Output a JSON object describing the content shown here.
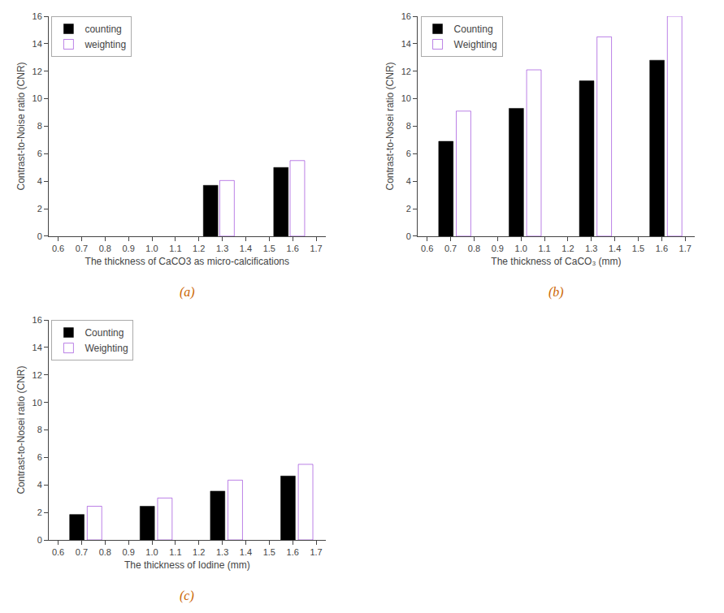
{
  "chart_data": [
    {
      "type": "bar",
      "xlabel": "The thickness of CaCO3 as micro-calcifications",
      "ylabel": "Contrast-to-Noise ratio (CNR)",
      "series": [
        {
          "name": "counting",
          "color": "#000000",
          "x": [
            1.25,
            1.55
          ],
          "values": [
            3.7,
            5.0
          ]
        },
        {
          "name": "weighting",
          "color": "#7700cc",
          "x": [
            1.32,
            1.62
          ],
          "values": [
            4.05,
            5.5
          ]
        }
      ],
      "xlim": [
        0.56,
        1.74
      ],
      "xticks": [
        0.6,
        0.7,
        0.8,
        0.9,
        {
          "value": 1.0,
          "label": "1.0"
        },
        1.1,
        1.2,
        1.3,
        1.4,
        1.5,
        1.6,
        1.7
      ],
      "ylim": [
        0,
        16
      ],
      "yticks": [
        0,
        2,
        4,
        6,
        8,
        10,
        12,
        14,
        16
      ],
      "grid": false,
      "legend": "upper left",
      "annotations": [
        "(a)"
      ]
    },
    {
      "type": "bar",
      "xlabel": "The thickness of CaCO₃ (mm)",
      "ylabel": "Contrast-to-Nosei ratio (CNR)",
      "series": [
        {
          "name": "Counting",
          "color": "#000000",
          "x": [
            0.68,
            0.98,
            1.28,
            1.58
          ],
          "values": [
            6.9,
            9.3,
            11.3,
            12.8
          ]
        },
        {
          "name": "Weighting",
          "color": "#7700cc",
          "x": [
            0.755,
            1.055,
            1.355,
            1.655
          ],
          "values": [
            9.1,
            12.1,
            14.5,
            16.0
          ]
        }
      ],
      "xlim": [
        0.56,
        1.74
      ],
      "xticks": [
        0.6,
        0.7,
        0.8,
        0.9,
        {
          "value": 1.0,
          "label": "1.0"
        },
        1.1,
        1.2,
        1.3,
        1.4,
        1.5,
        1.6,
        1.7
      ],
      "ylim": [
        0,
        16
      ],
      "yticks": [
        0,
        2,
        4,
        6,
        8,
        10,
        12,
        14,
        16
      ],
      "grid": false,
      "legend": "upper left",
      "annotations": [
        "(b)"
      ]
    },
    {
      "type": "bar",
      "xlabel": "The thickness of Iodine (mm)",
      "ylabel": "Contrast-to-Nosei ratio (CNR)",
      "series": [
        {
          "name": "Counting",
          "color": "#000000",
          "x": [
            0.68,
            0.98,
            1.28,
            1.58
          ],
          "values": [
            1.85,
            2.45,
            3.55,
            4.65
          ]
        },
        {
          "name": "Weighting",
          "color": "#7700cc",
          "x": [
            0.755,
            1.055,
            1.355,
            1.655
          ],
          "values": [
            2.45,
            3.05,
            4.35,
            5.5
          ]
        }
      ],
      "xlim": [
        0.56,
        1.74
      ],
      "xticks": [
        0.6,
        0.7,
        0.8,
        0.9,
        {
          "value": 1.0,
          "label": "1.0"
        },
        1.1,
        1.2,
        1.3,
        1.4,
        1.5,
        1.6,
        1.7
      ],
      "ylim": [
        0,
        16
      ],
      "yticks": [
        0,
        2,
        4,
        6,
        8,
        10,
        12,
        14,
        16
      ],
      "grid": false,
      "legend": "upper left",
      "annotations": [
        "(c)"
      ]
    }
  ]
}
